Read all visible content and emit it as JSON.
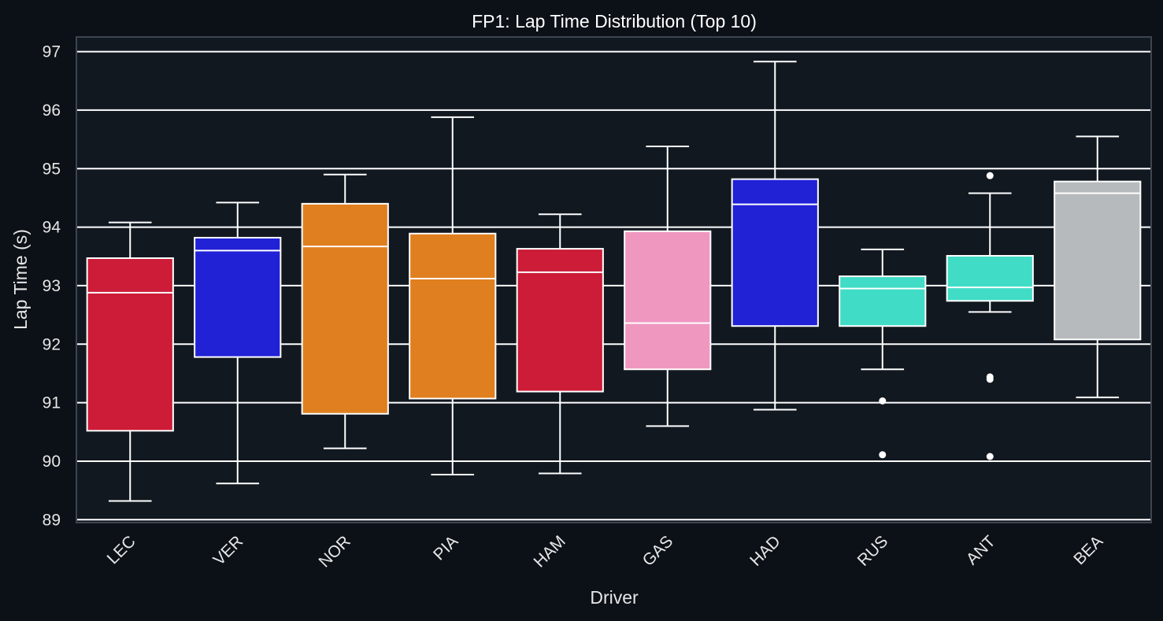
{
  "chart_data": {
    "type": "box",
    "title": "FP1: Lap Time Distribution (Top 10)",
    "xlabel": "Driver",
    "ylabel": "Lap Time (s)",
    "ylim": [
      88.95,
      97.25
    ],
    "yticks": [
      89,
      90,
      91,
      92,
      93,
      94,
      95,
      96,
      97
    ],
    "grid": "horizontal",
    "categories": [
      "LEC",
      "VER",
      "NOR",
      "PIA",
      "HAM",
      "GAS",
      "HAD",
      "RUS",
      "ANT",
      "BEA"
    ],
    "boxes": [
      {
        "driver": "LEC",
        "color": "#cc1c37",
        "whisker_low": 89.32,
        "q1": 90.52,
        "median": 92.88,
        "q3": 93.47,
        "whisker_high": 94.08,
        "outliers": []
      },
      {
        "driver": "VER",
        "color": "#2121d6",
        "whisker_low": 89.62,
        "q1": 91.78,
        "median": 93.6,
        "q3": 93.82,
        "whisker_high": 94.42,
        "outliers": []
      },
      {
        "driver": "NOR",
        "color": "#e07f20",
        "whisker_low": 90.22,
        "q1": 90.81,
        "median": 93.67,
        "q3": 94.4,
        "whisker_high": 94.9,
        "outliers": []
      },
      {
        "driver": "PIA",
        "color": "#e07f20",
        "whisker_low": 89.77,
        "q1": 91.07,
        "median": 93.12,
        "q3": 93.89,
        "whisker_high": 95.88,
        "outliers": []
      },
      {
        "driver": "HAM",
        "color": "#cc1c37",
        "whisker_low": 89.79,
        "q1": 91.19,
        "median": 93.23,
        "q3": 93.63,
        "whisker_high": 94.22,
        "outliers": []
      },
      {
        "driver": "GAS",
        "color": "#f097c0",
        "whisker_low": 90.6,
        "q1": 91.57,
        "median": 92.36,
        "q3": 93.93,
        "whisker_high": 95.38,
        "outliers": []
      },
      {
        "driver": "HAD",
        "color": "#2121d6",
        "whisker_low": 90.88,
        "q1": 92.31,
        "median": 94.39,
        "q3": 94.82,
        "whisker_high": 96.83,
        "outliers": []
      },
      {
        "driver": "RUS",
        "color": "#40dcc6",
        "whisker_low": 91.57,
        "q1": 92.31,
        "median": 92.95,
        "q3": 93.16,
        "whisker_high": 93.62,
        "outliers": [
          91.03,
          90.11
        ]
      },
      {
        "driver": "ANT",
        "color": "#40dcc6",
        "whisker_low": 92.55,
        "q1": 92.74,
        "median": 92.97,
        "q3": 93.51,
        "whisker_high": 94.58,
        "outliers": [
          94.88,
          91.44,
          91.4,
          90.08
        ]
      },
      {
        "driver": "BEA",
        "color": "#b7babd",
        "whisker_low": 91.09,
        "q1": 92.08,
        "median": 94.58,
        "q3": 94.78,
        "whisker_high": 95.55,
        "outliers": []
      }
    ],
    "colors": {
      "background": "#0c1017",
      "plot_background": "#121820",
      "grid": "#ffffff",
      "frame": "#3c4550",
      "text": "#e6e6e6",
      "box_edge": "#ffffff"
    }
  }
}
